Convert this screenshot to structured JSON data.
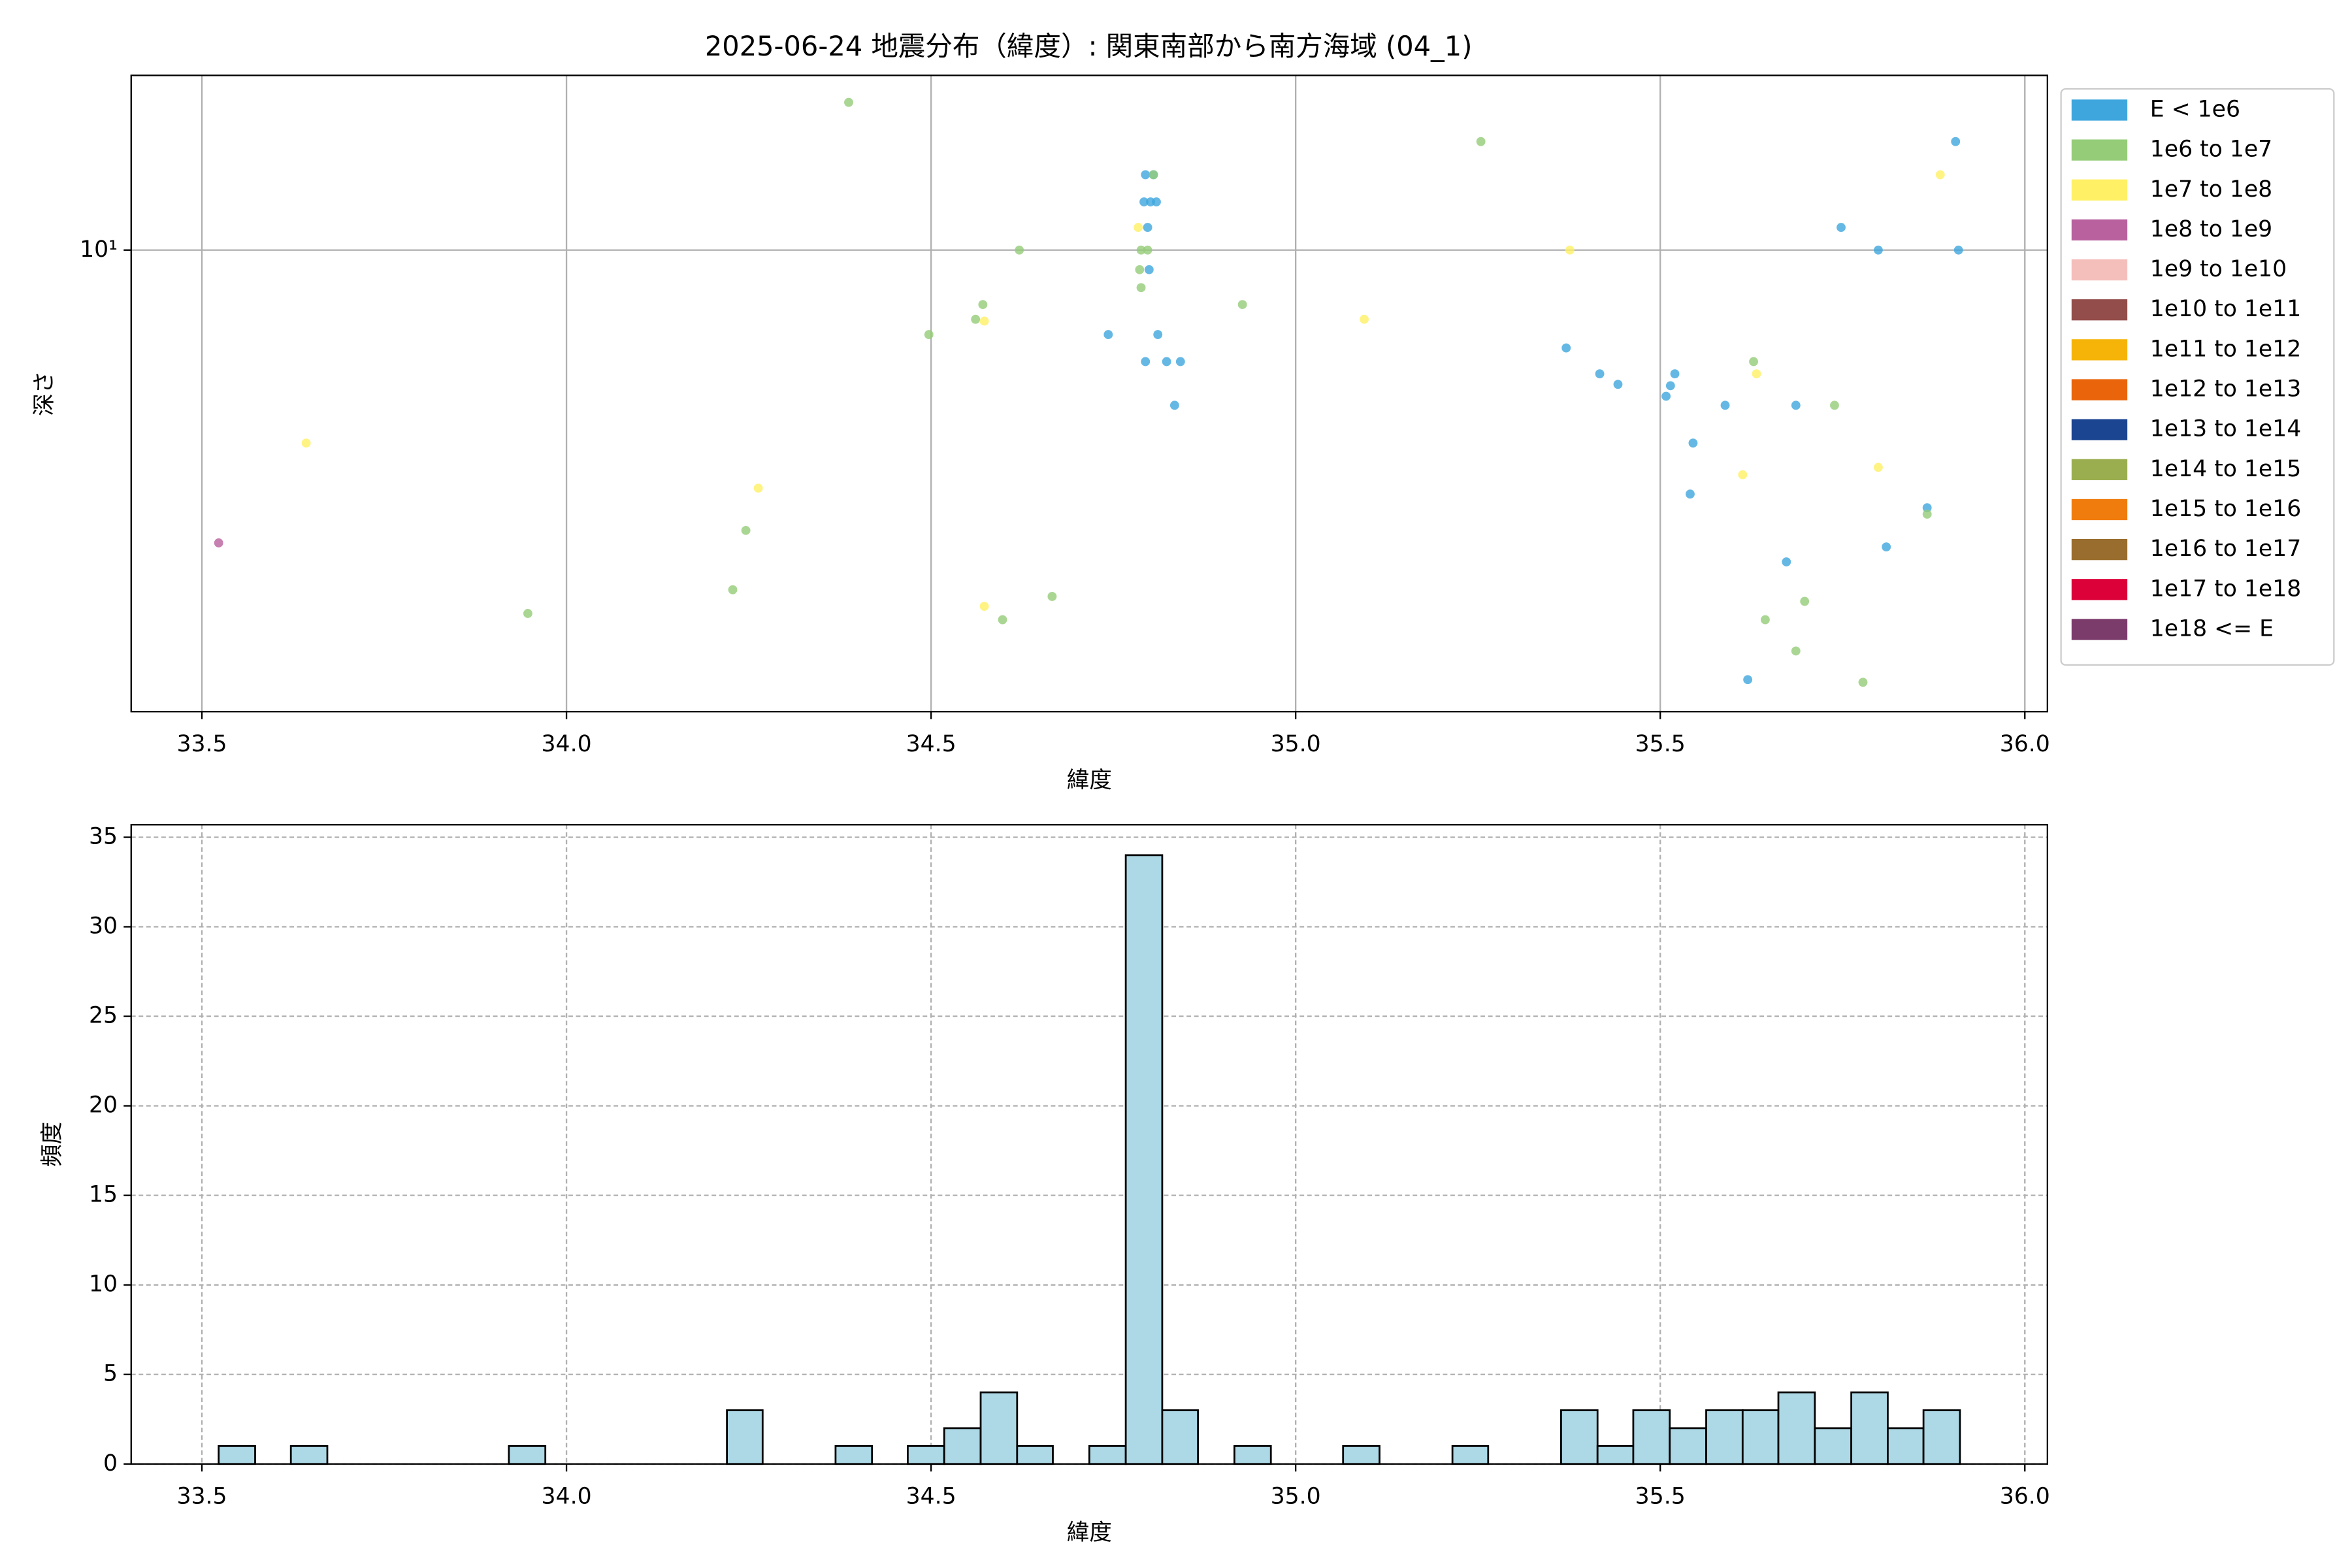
{
  "chart_data": [
    {
      "type": "scatter",
      "title": "2025-06-24 地震分布（緯度）: 関東南部から南方海域 (04_1)",
      "xlabel": "緯度",
      "ylabel": "深さ",
      "xlim": [
        33.403,
        36.031
      ],
      "ylim": [
        1.86,
        18.9
      ],
      "yscale": "log",
      "grid": true,
      "xticks": [
        33.5,
        {
          "value": 34,
          "label": "34.0"
        },
        34.5,
        {
          "value": 35,
          "label": "35.0"
        },
        35.5,
        {
          "value": 36,
          "label": "36.0"
        }
      ],
      "yticks": [
        {
          "value": 10,
          "label": "10¹"
        }
      ],
      "legend": "outside upper right",
      "series": [
        {
          "name": "E < 1e6",
          "color": "#3fa6dd",
          "x": [
            35.905,
            35.748,
            35.799,
            35.909,
            34.794,
            34.805,
            34.792,
            34.801,
            34.809,
            34.797,
            34.799,
            34.743,
            34.811,
            34.794,
            34.823,
            34.842,
            34.834,
            35.371,
            35.417,
            35.442,
            35.52,
            35.514,
            35.508,
            35.589,
            35.545,
            35.686,
            35.541,
            35.866,
            35.81,
            35.673,
            35.62
          ],
          "y": [
            14.85,
            10.86,
            10,
            10,
            13.16,
            13.16,
            11.92,
            11.92,
            11.92,
            10.86,
            9.31,
            7.35,
            7.35,
            6.66,
            6.66,
            6.66,
            5.68,
            7.0,
            6.37,
            6.13,
            6.37,
            6.1,
            5.87,
            5.68,
            4.95,
            5.68,
            4.11,
            3.91,
            3.39,
            3.21,
            2.09
          ]
        },
        {
          "name": "1e6 to 1e7",
          "color": "#95cc78",
          "x": [
            34.387,
            35.254,
            34.805,
            34.621,
            34.788,
            34.797,
            34.786,
            34.788,
            34.927,
            34.571,
            34.497,
            34.561,
            35.628,
            35.739,
            35.866,
            34.246,
            34.228,
            33.947,
            34.666,
            34.598,
            35.644,
            35.698,
            35.686,
            35.778
          ],
          "y": [
            17.13,
            14.85,
            13.16,
            10,
            10,
            10,
            9.31,
            8.72,
            8.2,
            8.2,
            7.35,
            7.77,
            6.66,
            5.68,
            3.82,
            3.6,
            2.9,
            2.66,
            2.83,
            2.6,
            2.6,
            2.78,
            2.32,
            2.07
          ]
        },
        {
          "name": "1e7 to 1e8",
          "color": "#fff065",
          "x": [
            35.884,
            34.784,
            35.376,
            35.094,
            34.573,
            35.632,
            33.643,
            34.263,
            35.613,
            35.799,
            34.573
          ],
          "y": [
            13.16,
            10.86,
            10,
            7.77,
            7.72,
            6.37,
            4.95,
            4.2,
            4.41,
            4.53,
            2.73
          ]
        },
        {
          "name": "1e8 to 1e9",
          "color": "#b8619e",
          "x": [
            33.523
          ],
          "y": [
            3.44
          ]
        },
        {
          "name": "1e9 to 1e10",
          "color": "#f4bfbb",
          "x": [],
          "y": []
        },
        {
          "name": "1e10 to 1e11",
          "color": "#934d4a",
          "x": [],
          "y": []
        },
        {
          "name": "1e11 to 1e12",
          "color": "#f6b409",
          "x": [],
          "y": []
        },
        {
          "name": "1e12 to 1e13",
          "color": "#ea640c",
          "x": [],
          "y": []
        },
        {
          "name": "1e13 to 1e14",
          "color": "#1c4591",
          "x": [],
          "y": []
        },
        {
          "name": "1e14 to 1e15",
          "color": "#9aae50",
          "x": [],
          "y": []
        },
        {
          "name": "1e15 to 1e16",
          "color": "#f07c0d",
          "x": [],
          "y": []
        },
        {
          "name": "1e16 to 1e17",
          "color": "#996d2d",
          "x": [],
          "y": []
        },
        {
          "name": "1e17 to 1e18",
          "color": "#dc0239",
          "x": [],
          "y": []
        },
        {
          "name": "1e18 <= E",
          "color": "#7b3c6c",
          "x": [],
          "y": []
        }
      ]
    },
    {
      "type": "histogram",
      "xlabel": "緯度",
      "ylabel": "頻度",
      "xlim": [
        33.403,
        36.031
      ],
      "ylim": [
        0,
        35.7
      ],
      "grid": "dashed",
      "color": "#add8e6",
      "edgecolor": "#000000",
      "xticks": [
        33.5,
        {
          "value": 34,
          "label": "34.0"
        },
        34.5,
        {
          "value": 35,
          "label": "35.0"
        },
        35.5,
        {
          "value": 36,
          "label": "36.0"
        }
      ],
      "yticks": [
        0,
        5,
        10,
        15,
        20,
        25,
        30,
        35
      ],
      "bins": [
        33.523,
        33.573,
        33.622,
        33.672,
        33.722,
        33.772,
        33.822,
        33.871,
        33.921,
        33.971,
        34.021,
        34.07,
        34.12,
        34.17,
        34.22,
        34.269,
        34.319,
        34.369,
        34.419,
        34.468,
        34.518,
        34.568,
        34.618,
        34.667,
        34.717,
        34.767,
        34.817,
        34.866,
        34.916,
        34.966,
        35.016,
        35.065,
        35.115,
        35.165,
        35.215,
        35.264,
        35.314,
        35.364,
        35.414,
        35.463,
        35.513,
        35.563,
        35.613,
        35.662,
        35.712,
        35.762,
        35.812,
        35.861,
        35.911
      ],
      "counts": [
        1,
        0,
        1,
        0,
        0,
        0,
        0,
        0,
        1,
        0,
        0,
        0,
        0,
        0,
        3,
        0,
        0,
        1,
        0,
        1,
        2,
        4,
        1,
        0,
        1,
        34,
        3,
        0,
        1,
        0,
        0,
        1,
        0,
        0,
        1,
        0,
        0,
        3,
        1,
        3,
        2,
        3,
        3,
        4,
        2,
        4,
        2,
        3
      ]
    }
  ]
}
